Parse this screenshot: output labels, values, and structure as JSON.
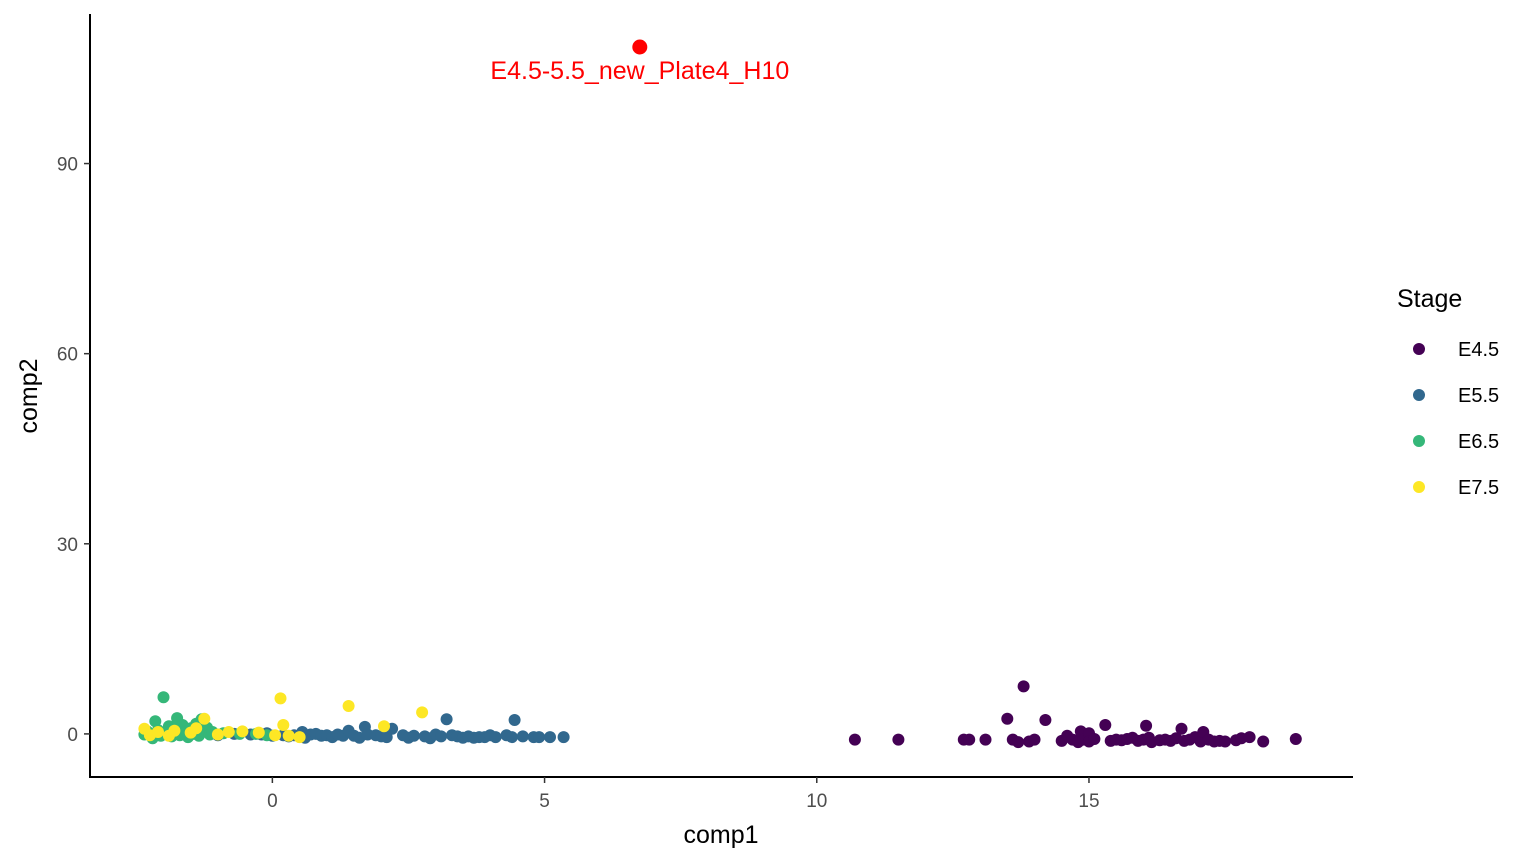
{
  "chart_data": {
    "type": "scatter",
    "xlabel": "comp1",
    "ylabel": "comp2",
    "xlim": [
      -3.35,
      19.85
    ],
    "ylim": [
      -6.8,
      113.6
    ],
    "xticks": [
      0,
      5,
      10,
      15
    ],
    "yticks": [
      0,
      30,
      60,
      90
    ],
    "grid": false,
    "legend": {
      "title": "Stage",
      "position": "right"
    },
    "series": [
      {
        "name": "E4.5",
        "color": "#440154",
        "points": [
          [
            10.7,
            -0.9
          ],
          [
            11.5,
            -0.9
          ],
          [
            12.7,
            -0.9
          ],
          [
            12.8,
            -0.9
          ],
          [
            13.1,
            -0.9
          ],
          [
            13.5,
            2.4
          ],
          [
            13.6,
            -0.9
          ],
          [
            13.7,
            -1.3
          ],
          [
            13.8,
            7.5
          ],
          [
            13.9,
            -1.2
          ],
          [
            14.0,
            -0.9
          ],
          [
            14.2,
            2.2
          ],
          [
            14.5,
            -1.1
          ],
          [
            14.6,
            -0.3
          ],
          [
            14.7,
            -0.9
          ],
          [
            14.8,
            -1.3
          ],
          [
            14.85,
            0.4
          ],
          [
            14.9,
            -0.9
          ],
          [
            15.0,
            0.1
          ],
          [
            15.0,
            -1.2
          ],
          [
            15.1,
            -0.8
          ],
          [
            15.3,
            1.4
          ],
          [
            15.4,
            -1.1
          ],
          [
            15.5,
            -0.9
          ],
          [
            15.6,
            -1.0
          ],
          [
            15.7,
            -0.8
          ],
          [
            15.8,
            -0.6
          ],
          [
            15.9,
            -1.1
          ],
          [
            16.0,
            -0.9
          ],
          [
            16.05,
            1.3
          ],
          [
            16.1,
            -0.6
          ],
          [
            16.15,
            -1.3
          ],
          [
            16.3,
            -1.0
          ],
          [
            16.4,
            -0.9
          ],
          [
            16.5,
            -1.1
          ],
          [
            16.6,
            -0.7
          ],
          [
            16.7,
            0.8
          ],
          [
            16.75,
            -1.1
          ],
          [
            16.85,
            -0.9
          ],
          [
            16.95,
            -0.5
          ],
          [
            17.05,
            -1.2
          ],
          [
            17.1,
            0.3
          ],
          [
            17.2,
            -0.9
          ],
          [
            17.3,
            -1.2
          ],
          [
            17.4,
            -1.1
          ],
          [
            17.5,
            -1.2
          ],
          [
            17.7,
            -1.0
          ],
          [
            17.8,
            -0.7
          ],
          [
            17.95,
            -0.5
          ],
          [
            18.2,
            -1.2
          ],
          [
            18.8,
            -0.8
          ]
        ]
      },
      {
        "name": "E5.5",
        "color": "#31688E",
        "points": [
          [
            -2.1,
            0.0
          ],
          [
            -1.0,
            -0.2
          ],
          [
            -0.7,
            0.0
          ],
          [
            -0.4,
            -0.1
          ],
          [
            -0.2,
            -0.1
          ],
          [
            -0.1,
            0.1
          ],
          [
            0.0,
            -0.3
          ],
          [
            0.2,
            -0.2
          ],
          [
            0.3,
            -0.4
          ],
          [
            0.4,
            -0.2
          ],
          [
            0.55,
            0.3
          ],
          [
            0.6,
            -0.6
          ],
          [
            0.7,
            -0.1
          ],
          [
            0.8,
            0.0
          ],
          [
            0.9,
            -0.3
          ],
          [
            1.0,
            -0.2
          ],
          [
            1.1,
            -0.5
          ],
          [
            1.2,
            -0.1
          ],
          [
            1.3,
            -0.3
          ],
          [
            1.4,
            0.5
          ],
          [
            1.5,
            -0.3
          ],
          [
            1.6,
            -0.6
          ],
          [
            1.7,
            1.1
          ],
          [
            1.75,
            -0.1
          ],
          [
            1.9,
            -0.2
          ],
          [
            2.0,
            -0.4
          ],
          [
            2.1,
            -0.5
          ],
          [
            2.2,
            0.8
          ],
          [
            2.4,
            -0.2
          ],
          [
            2.5,
            -0.6
          ],
          [
            2.6,
            -0.3
          ],
          [
            2.8,
            -0.4
          ],
          [
            2.9,
            -0.7
          ],
          [
            3.0,
            -0.1
          ],
          [
            3.1,
            -0.4
          ],
          [
            3.2,
            2.3
          ],
          [
            3.3,
            -0.2
          ],
          [
            3.4,
            -0.4
          ],
          [
            3.5,
            -0.6
          ],
          [
            3.6,
            -0.4
          ],
          [
            3.7,
            -0.6
          ],
          [
            3.8,
            -0.5
          ],
          [
            3.9,
            -0.5
          ],
          [
            4.0,
            -0.2
          ],
          [
            4.1,
            -0.5
          ],
          [
            4.3,
            -0.2
          ],
          [
            4.4,
            -0.5
          ],
          [
            4.45,
            2.2
          ],
          [
            4.6,
            -0.4
          ],
          [
            4.8,
            -0.5
          ],
          [
            4.9,
            -0.5
          ],
          [
            5.1,
            -0.5
          ],
          [
            5.35,
            -0.5
          ]
        ]
      },
      {
        "name": "E6.5",
        "color": "#35B779",
        "points": [
          [
            -2.35,
            -0.1
          ],
          [
            -2.3,
            0.4
          ],
          [
            -2.2,
            -0.7
          ],
          [
            -2.15,
            2.0
          ],
          [
            -2.1,
            0.6
          ],
          [
            -2.05,
            -0.3
          ],
          [
            -2.0,
            5.8
          ],
          [
            -1.95,
            0.1
          ],
          [
            -1.9,
            1.2
          ],
          [
            -1.85,
            -0.4
          ],
          [
            -1.8,
            0.8
          ],
          [
            -1.75,
            2.5
          ],
          [
            -1.7,
            -0.2
          ],
          [
            -1.65,
            1.4
          ],
          [
            -1.6,
            0.2
          ],
          [
            -1.55,
            -0.5
          ],
          [
            -1.5,
            0.9
          ],
          [
            -1.45,
            0.0
          ],
          [
            -1.4,
            1.6
          ],
          [
            -1.35,
            -0.3
          ],
          [
            -1.3,
            2.3
          ],
          [
            -1.25,
            0.5
          ],
          [
            -1.2,
            1.0
          ],
          [
            -1.15,
            -0.1
          ],
          [
            -1.1,
            0.3
          ],
          [
            -0.9,
            0.1
          ],
          [
            -0.6,
            0.0
          ],
          [
            -0.3,
            0.0
          ],
          [
            -0.1,
            -0.2
          ]
        ]
      },
      {
        "name": "E7.5",
        "color": "#FDE725",
        "points": [
          [
            -2.35,
            0.8
          ],
          [
            -2.25,
            -0.2
          ],
          [
            -2.1,
            0.3
          ],
          [
            -1.9,
            -0.3
          ],
          [
            -1.8,
            0.5
          ],
          [
            -1.5,
            0.2
          ],
          [
            -1.4,
            0.9
          ],
          [
            -1.25,
            2.4
          ],
          [
            -1.0,
            -0.1
          ],
          [
            -0.8,
            0.3
          ],
          [
            -0.55,
            0.4
          ],
          [
            -0.25,
            0.2
          ],
          [
            0.05,
            -0.2
          ],
          [
            0.15,
            5.6
          ],
          [
            0.2,
            1.4
          ],
          [
            0.3,
            -0.3
          ],
          [
            0.5,
            -0.5
          ],
          [
            1.4,
            4.4
          ],
          [
            2.05,
            1.2
          ],
          [
            2.75,
            3.4
          ]
        ]
      },
      {
        "name": "",
        "color": "#FF0000",
        "points": [
          [
            6.75,
            108.4
          ]
        ]
      }
    ],
    "annotations": [
      {
        "text": "E4.5-5.5_new_Plate4_H10",
        "x": 6.75,
        "y": 108.4,
        "color": "#FF0000"
      }
    ]
  }
}
